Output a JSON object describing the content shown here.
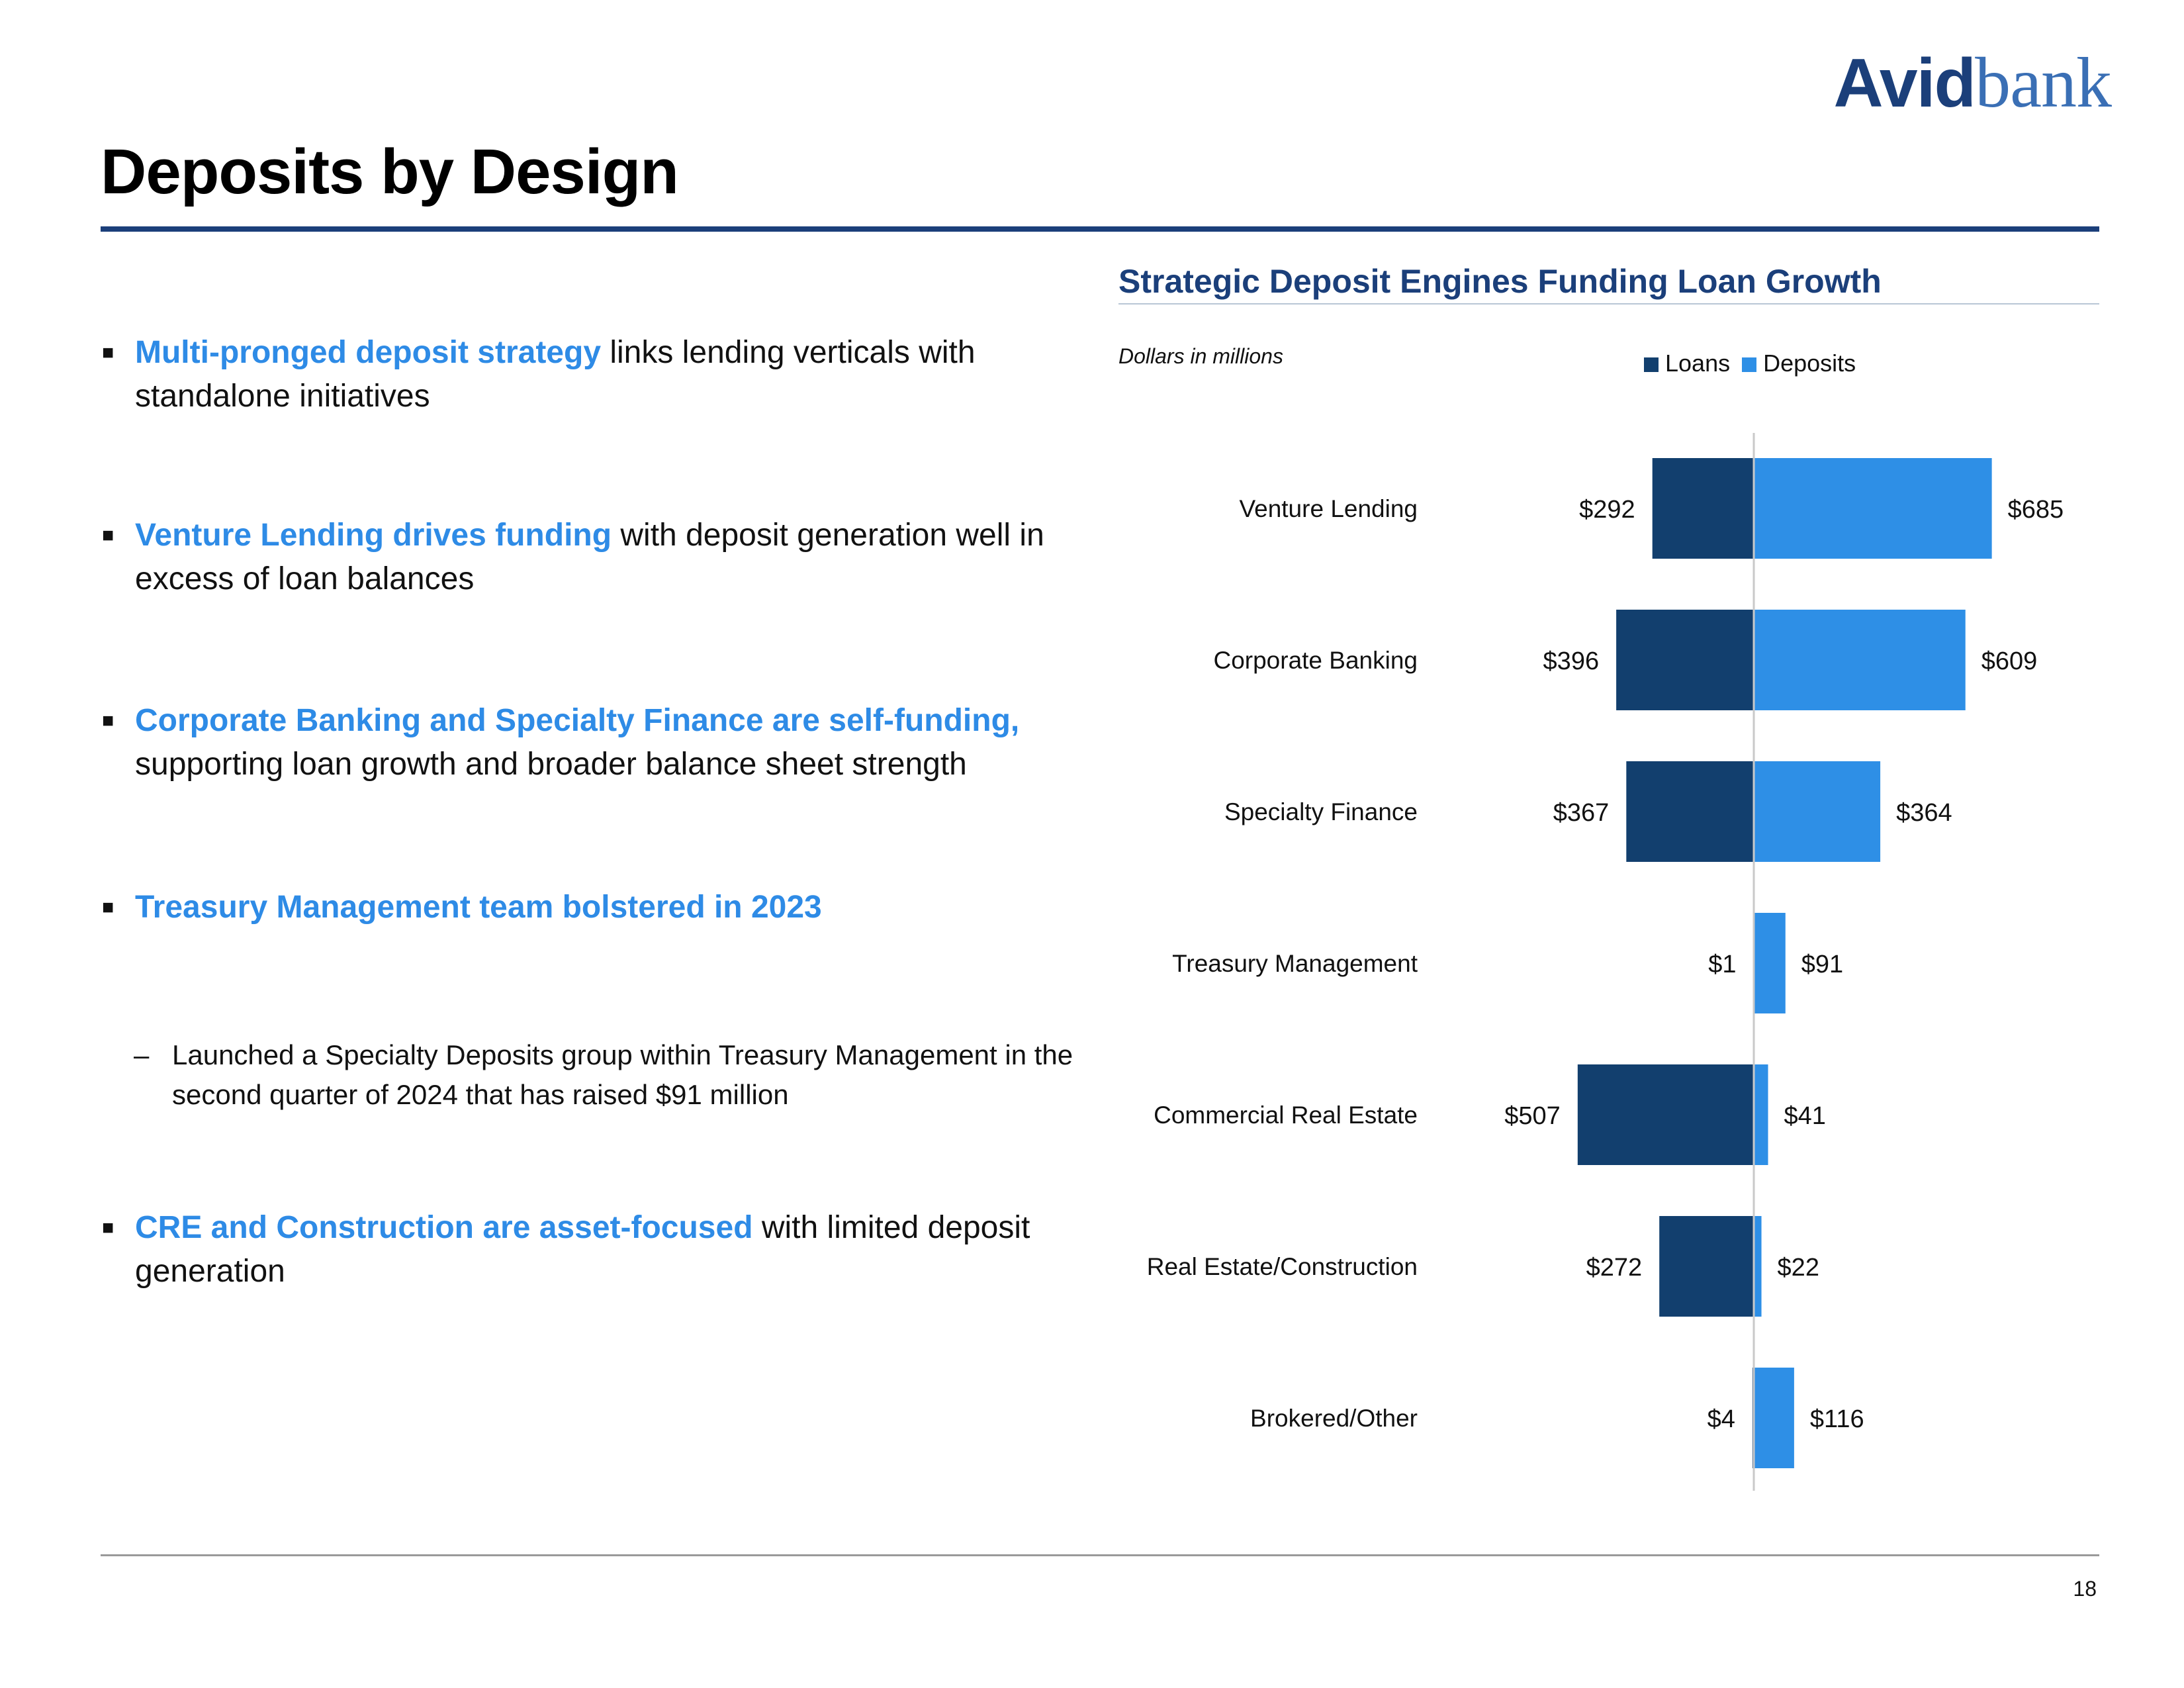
{
  "logo": {
    "part1": "Avid",
    "part2": "bank"
  },
  "page": {
    "title": "Deposits by Design",
    "number": "18"
  },
  "bullets": [
    {
      "highlight": "Multi-pronged deposit strategy",
      "rest": " links lending verticals with standalone initiatives"
    },
    {
      "highlight": "Venture Lending drives funding",
      "rest": " with deposit generation well in excess of loan balances"
    },
    {
      "highlight": "Corporate Banking and Specialty Finance are self-funding,",
      "rest": " supporting loan growth and broader balance sheet strength"
    },
    {
      "highlight": "Treasury Management team bolstered in 2023",
      "rest": ""
    },
    {
      "highlight": "CRE and Construction are asset-focused",
      "rest": " with limited deposit generation"
    }
  ],
  "sub_bullet": {
    "marker": "–",
    "text": "Launched a Specialty Deposits group within Treasury Management in the second quarter of 2024 that has raised $91 million"
  },
  "bullet_marker": "■",
  "colors": {
    "loans": "#123f6e",
    "deposits": "#2e8fe6",
    "accent": "#1b3f7a",
    "highlight": "#2e8be6"
  },
  "chart_data": {
    "type": "bar",
    "orientation": "horizontal-diverging",
    "title": "Strategic Deposit Engines Funding Loan Growth",
    "units_note": "Dollars in millions",
    "legend": [
      "Loans",
      "Deposits"
    ],
    "legend_position": "top",
    "categories": [
      "Venture Lending",
      "Corporate Banking",
      "Specialty Finance",
      "Treasury Management",
      "Commercial Real Estate",
      "Real Estate/Construction",
      "Brokered/Other"
    ],
    "series": [
      {
        "name": "Loans",
        "direction": "left",
        "values": [
          292,
          396,
          367,
          1,
          507,
          272,
          4
        ],
        "labels": [
          "$292",
          "$396",
          "$367",
          "$1",
          "$507",
          "$272",
          "$4"
        ]
      },
      {
        "name": "Deposits",
        "direction": "right",
        "values": [
          685,
          609,
          364,
          91,
          41,
          22,
          116
        ],
        "labels": [
          "$685",
          "$609",
          "$364",
          "$91",
          "$41",
          "$22",
          "$116"
        ]
      }
    ],
    "grid": false
  }
}
